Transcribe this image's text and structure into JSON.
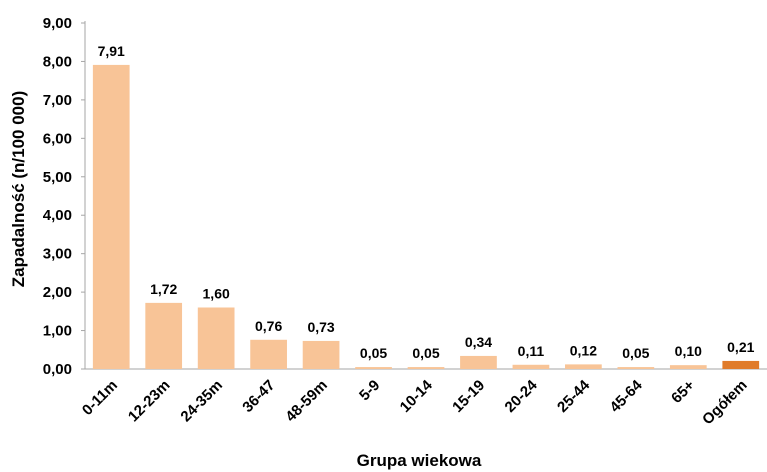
{
  "chart_data": {
    "type": "bar",
    "title": "",
    "xlabel": "Grupa wiekowa",
    "ylabel": "Zapadalność (n/100 000)",
    "ylim": [
      0,
      9
    ],
    "yticks": [
      "0,00",
      "1,00",
      "2,00",
      "3,00",
      "4,00",
      "5,00",
      "6,00",
      "7,00",
      "8,00",
      "9,00"
    ],
    "grid": false,
    "legend": "none",
    "categories": [
      "0-11m",
      "12-23m",
      "24-35m",
      "36-47",
      "48-59m",
      "5-9",
      "10-14",
      "15-19",
      "20-24",
      "25-44",
      "45-64",
      "65+",
      "Ogółem"
    ],
    "values": [
      7.91,
      1.72,
      1.6,
      0.76,
      0.73,
      0.05,
      0.05,
      0.34,
      0.11,
      0.12,
      0.05,
      0.1,
      0.21
    ],
    "value_labels": [
      "7,91",
      "1,72",
      "1,60",
      "0,76",
      "0,73",
      "0,05",
      "0,05",
      "0,34",
      "0,11",
      "0,12",
      "0,05",
      "0,10",
      "0,21"
    ],
    "colors": {
      "bar": "#F8C497",
      "highlight_bar": "#E07B2A",
      "highlight_index": 12,
      "axis": "#A6A6A6"
    }
  }
}
